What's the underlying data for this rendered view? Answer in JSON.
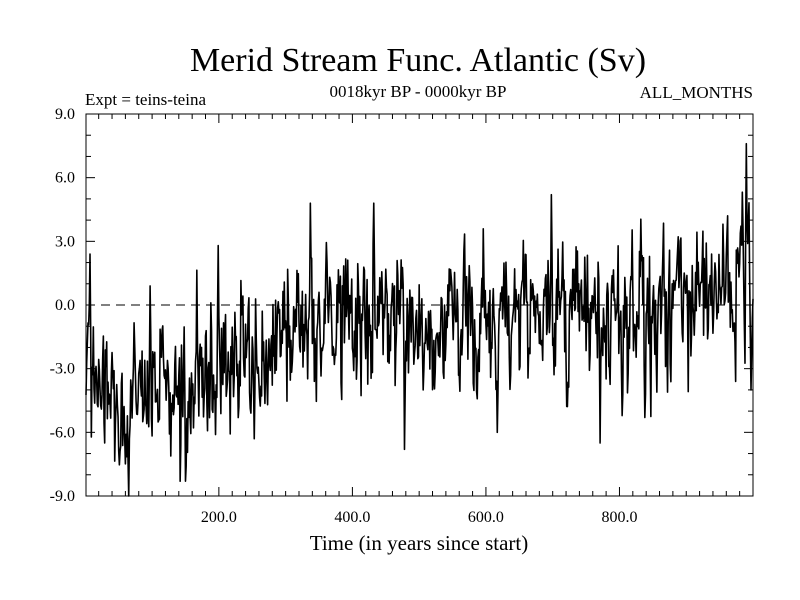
{
  "chart_data": {
    "type": "line",
    "title": "Merid Stream Func. Atlantic (Sv)",
    "subtitle_left": "Expt = teins-teina",
    "subtitle_center": "0018kyr BP - 0000kyr BP",
    "subtitle_right": "ALL_MONTHS",
    "xlabel": "Time (in years since start)",
    "ylabel": "",
    "xlim": [
      1,
      1000
    ],
    "ylim": [
      -9,
      9
    ],
    "x_ticks": [
      200,
      400,
      600,
      800
    ],
    "x_tick_labels": [
      "200.0",
      "400.0",
      "600.0",
      "800.0"
    ],
    "y_ticks": [
      -9,
      -6,
      -3,
      0,
      3,
      6,
      9
    ],
    "y_tick_labels": [
      "-9.0",
      "-6.0",
      "-3.0",
      "0.0",
      "3.0",
      "6.0",
      "9.0"
    ],
    "reference_line": 0,
    "series": [
      {
        "name": "Merid Stream Func. Atlantic",
        "color": "#000000",
        "trend_years": [
          1,
          10,
          30,
          60,
          100,
          150,
          200,
          250,
          300,
          350,
          400,
          450,
          500,
          550,
          600,
          650,
          700,
          750,
          800,
          850,
          900,
          950,
          1000
        ],
        "trend_values": [
          -2.5,
          -3.5,
          -4.0,
          -4.3,
          -4.0,
          -3.5,
          -3.0,
          -2.2,
          -1.3,
          -0.6,
          -0.3,
          -0.6,
          -0.9,
          -0.8,
          -0.5,
          -0.6,
          -0.3,
          -0.7,
          -0.5,
          0.0,
          0.5,
          0.6,
          1.0
        ],
        "notable_points": {
          "years": [
            7,
            65,
            97,
            151,
            199,
            253,
            337,
            432,
            478,
            617,
            698,
            771,
            838,
            990,
            997
          ],
          "values": [
            2.4,
            -9.0,
            0.9,
            -7.6,
            2.8,
            -6.3,
            4.8,
            4.8,
            -6.8,
            -6.0,
            5.2,
            -6.5,
            -5.3,
            7.6,
            -4.0
          ]
        },
        "noise_amplitude_sv": 1.5,
        "generator_seed": 20240518
      }
    ]
  }
}
